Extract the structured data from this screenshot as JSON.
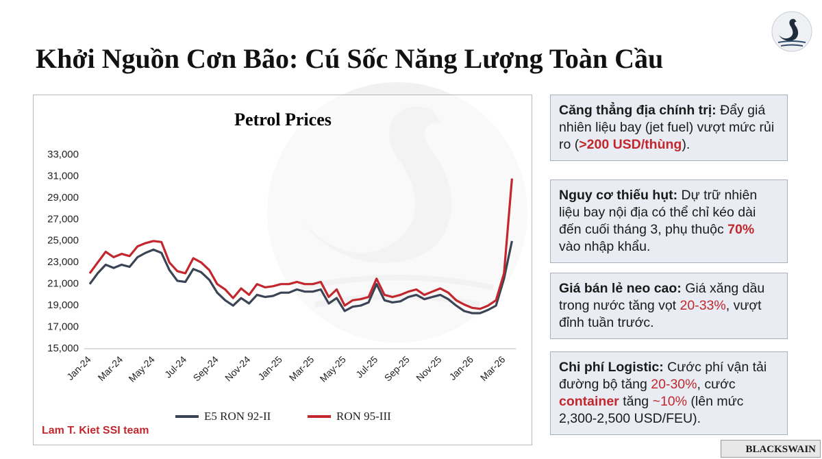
{
  "header": {
    "title": "Khởi Nguồn Cơn Bão: Cú Sốc Năng Lượng Toàn Cầu"
  },
  "chart_data": {
    "type": "line",
    "title": "Petrol Prices",
    "categories": [
      "Jan-24",
      null,
      null,
      null,
      "Mar-24",
      null,
      null,
      null,
      "May-24",
      null,
      null,
      null,
      "Jul-24",
      null,
      null,
      null,
      "Sep-24",
      null,
      null,
      null,
      "Nov-24",
      null,
      null,
      null,
      "Jan-25",
      null,
      null,
      null,
      "Mar-25",
      null,
      null,
      null,
      "May-25",
      null,
      null,
      null,
      "Jul-25",
      null,
      null,
      null,
      "Sep-25",
      null,
      null,
      null,
      "Nov-25",
      null,
      null,
      null,
      "Jan-26",
      null,
      null,
      null,
      "Mar-26",
      null
    ],
    "series": [
      {
        "name": "E5 RON 92-II",
        "color": "#3a4454",
        "values": [
          21000,
          22000,
          22800,
          22500,
          22800,
          22600,
          23500,
          23900,
          24200,
          23900,
          22300,
          21300,
          21200,
          22400,
          22100,
          21400,
          20200,
          19500,
          19000,
          19700,
          19200,
          20000,
          19800,
          19900,
          20200,
          20200,
          20500,
          20300,
          20300,
          20500,
          19200,
          19700,
          18500,
          18900,
          19000,
          19300,
          21000,
          19500,
          19300,
          19400,
          19800,
          20000,
          19600,
          19800,
          20000,
          19600,
          19000,
          18500,
          18300,
          18300,
          18600,
          19000,
          21500,
          25000
        ]
      },
      {
        "name": "RON 95-III",
        "color": "#c1272d",
        "values": [
          22000,
          23000,
          24000,
          23500,
          23800,
          23600,
          24500,
          24800,
          25000,
          24900,
          23000,
          22200,
          22000,
          23400,
          23000,
          22300,
          21000,
          20500,
          19700,
          20600,
          20000,
          21000,
          20700,
          20800,
          21000,
          21000,
          21200,
          21000,
          21000,
          21200,
          19800,
          20500,
          19000,
          19500,
          19600,
          19800,
          21500,
          20000,
          19800,
          20000,
          20300,
          20500,
          20000,
          20300,
          20600,
          20200,
          19500,
          19100,
          18800,
          18700,
          19000,
          19500,
          22000,
          30800
        ]
      }
    ],
    "ylim": [
      15000,
      33000
    ],
    "yticks": [
      {
        "value": 15000,
        "label": "15,000"
      },
      {
        "value": 17000,
        "label": "17,000"
      },
      {
        "value": 19000,
        "label": "19,000"
      },
      {
        "value": 21000,
        "label": "21,000"
      },
      {
        "value": 23000,
        "label": "23,000"
      },
      {
        "value": 25000,
        "label": "25,000"
      },
      {
        "value": 27000,
        "label": "27,000"
      },
      {
        "value": 29000,
        "label": "29,000"
      },
      {
        "value": 31000,
        "label": "31,000"
      },
      {
        "value": 33000,
        "label": "33,000"
      }
    ],
    "grid": false,
    "legend": "bottom",
    "credit": "Lam T. Kiet SSI team"
  },
  "boxes": [
    {
      "label": "Căng thẳng địa chính trị:",
      "text": [
        " Đẩy giá nhiên liệu bay (jet fuel) vượt mức rủi ro (",
        ">200 USD/thùng",
        ")."
      ]
    },
    {
      "label": "Nguy cơ thiếu hụt:",
      "text": [
        " Dự trữ nhiên liệu bay nội địa có thể chỉ kéo dài đến cuối tháng 3, phụ thuộc ",
        "70%",
        " vào nhập khẩu."
      ]
    },
    {
      "label": "Giá bán lẻ neo cao:",
      "text": [
        " Giá xăng dầu trong nước tăng vọt ",
        "20-33%",
        ", vượt đỉnh tuần trước."
      ]
    },
    {
      "label": "Chi phí Logistic:",
      "text": [
        " Cước phí vận tải đường bộ tăng ",
        "20-30%",
        ", cước ",
        "container",
        " tăng ",
        "~10%",
        " (lên mức 2,300-2,500 USD/FEU)."
      ]
    }
  ],
  "footer": {
    "brand": "BLACKSWAIN"
  }
}
